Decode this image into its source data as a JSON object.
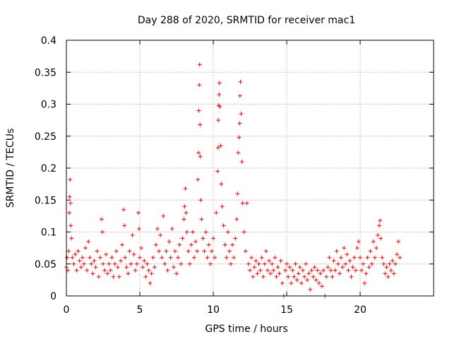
{
  "chart_data": {
    "type": "scatter",
    "title": "Day 288 of 2020, SRMTID for receiver mac1",
    "xlabel": "GPS time / hours",
    "ylabel": "SRMTID / TECUs",
    "xlim": [
      0,
      25
    ],
    "ylim": [
      0,
      0.4
    ],
    "xticks": [
      0,
      5,
      10,
      15,
      20
    ],
    "xtick_labels": [
      "0",
      "5",
      "10",
      "15",
      "20"
    ],
    "yticks": [
      0,
      0.05,
      0.1,
      0.15,
      0.2,
      0.25,
      0.3,
      0.35,
      0.4
    ],
    "ytick_labels": [
      "0",
      "0.05",
      "0.1",
      "0.15",
      "0.2",
      "0.25",
      "0.3",
      "0.35",
      "0.4"
    ],
    "grid": true,
    "marker": "plus",
    "color": "#ff0000",
    "series": [
      {
        "name": "SRMTID",
        "points": [
          [
            0.0,
            0.045
          ],
          [
            0.05,
            0.06
          ],
          [
            0.1,
            0.04
          ],
          [
            0.15,
            0.07
          ],
          [
            0.2,
            0.13
          ],
          [
            0.22,
            0.155
          ],
          [
            0.25,
            0.182
          ],
          [
            0.28,
            0.145
          ],
          [
            0.3,
            0.11
          ],
          [
            0.35,
            0.09
          ],
          [
            0.4,
            0.06
          ],
          [
            0.5,
            0.05
          ],
          [
            0.6,
            0.065
          ],
          [
            0.7,
            0.04
          ],
          [
            0.8,
            0.07
          ],
          [
            0.9,
            0.055
          ],
          [
            1.0,
            0.045
          ],
          [
            1.1,
            0.06
          ],
          [
            1.2,
            0.05
          ],
          [
            1.3,
            0.075
          ],
          [
            1.4,
            0.04
          ],
          [
            1.5,
            0.085
          ],
          [
            1.6,
            0.06
          ],
          [
            1.7,
            0.05
          ],
          [
            1.8,
            0.035
          ],
          [
            1.9,
            0.055
          ],
          [
            2.0,
            0.045
          ],
          [
            2.1,
            0.07
          ],
          [
            2.2,
            0.03
          ],
          [
            2.3,
            0.06
          ],
          [
            2.4,
            0.12
          ],
          [
            2.45,
            0.1
          ],
          [
            2.5,
            0.05
          ],
          [
            2.6,
            0.04
          ],
          [
            2.7,
            0.065
          ],
          [
            2.8,
            0.035
          ],
          [
            2.9,
            0.05
          ],
          [
            3.0,
            0.04
          ],
          [
            3.1,
            0.06
          ],
          [
            3.2,
            0.03
          ],
          [
            3.3,
            0.05
          ],
          [
            3.4,
            0.07
          ],
          [
            3.5,
            0.045
          ],
          [
            3.6,
            0.03
          ],
          [
            3.7,
            0.055
          ],
          [
            3.8,
            0.08
          ],
          [
            3.9,
            0.135
          ],
          [
            3.95,
            0.11
          ],
          [
            4.0,
            0.06
          ],
          [
            4.1,
            0.045
          ],
          [
            4.2,
            0.035
          ],
          [
            4.3,
            0.07
          ],
          [
            4.4,
            0.05
          ],
          [
            4.5,
            0.095
          ],
          [
            4.6,
            0.065
          ],
          [
            4.7,
            0.04
          ],
          [
            4.8,
            0.05
          ],
          [
            4.9,
            0.13
          ],
          [
            4.95,
            0.105
          ],
          [
            5.0,
            0.06
          ],
          [
            5.1,
            0.075
          ],
          [
            5.2,
            0.045
          ],
          [
            5.3,
            0.055
          ],
          [
            5.4,
            0.03
          ],
          [
            5.5,
            0.05
          ],
          [
            5.6,
            0.04
          ],
          [
            5.7,
            0.02
          ],
          [
            5.8,
            0.035
          ],
          [
            5.9,
            0.06
          ],
          [
            6.0,
            0.045
          ],
          [
            6.1,
            0.08
          ],
          [
            6.2,
            0.105
          ],
          [
            6.3,
            0.07
          ],
          [
            6.4,
            0.095
          ],
          [
            6.5,
            0.06
          ],
          [
            6.6,
            0.125
          ],
          [
            6.7,
            0.05
          ],
          [
            6.8,
            0.07
          ],
          [
            6.9,
            0.04
          ],
          [
            7.0,
            0.085
          ],
          [
            7.1,
            0.06
          ],
          [
            7.2,
            0.105
          ],
          [
            7.3,
            0.045
          ],
          [
            7.4,
            0.07
          ],
          [
            7.5,
            0.035
          ],
          [
            7.6,
            0.06
          ],
          [
            7.7,
            0.08
          ],
          [
            7.8,
            0.05
          ],
          [
            7.9,
            0.09
          ],
          [
            8.0,
            0.12
          ],
          [
            8.05,
            0.14
          ],
          [
            8.1,
            0.168
          ],
          [
            8.15,
            0.13
          ],
          [
            8.2,
            0.1
          ],
          [
            8.3,
            0.07
          ],
          [
            8.4,
            0.05
          ],
          [
            8.5,
            0.08
          ],
          [
            8.6,
            0.1
          ],
          [
            8.7,
            0.06
          ],
          [
            8.8,
            0.085
          ],
          [
            8.9,
            0.07
          ],
          [
            8.95,
            0.182
          ],
          [
            9.0,
            0.224
          ],
          [
            9.02,
            0.29
          ],
          [
            9.05,
            0.33
          ],
          [
            9.07,
            0.362
          ],
          [
            9.1,
            0.268
          ],
          [
            9.12,
            0.218
          ],
          [
            9.15,
            0.15
          ],
          [
            9.2,
            0.12
          ],
          [
            9.3,
            0.09
          ],
          [
            9.4,
            0.07
          ],
          [
            9.5,
            0.1
          ],
          [
            9.6,
            0.06
          ],
          [
            9.7,
            0.08
          ],
          [
            9.8,
            0.05
          ],
          [
            9.9,
            0.07
          ],
          [
            10.0,
            0.09
          ],
          [
            10.1,
            0.06
          ],
          [
            10.2,
            0.13
          ],
          [
            10.3,
            0.195
          ],
          [
            10.32,
            0.232
          ],
          [
            10.35,
            0.275
          ],
          [
            10.37,
            0.298
          ],
          [
            10.4,
            0.315
          ],
          [
            10.42,
            0.333
          ],
          [
            10.45,
            0.296
          ],
          [
            10.5,
            0.235
          ],
          [
            10.55,
            0.175
          ],
          [
            10.6,
            0.14
          ],
          [
            10.7,
            0.11
          ],
          [
            10.8,
            0.08
          ],
          [
            10.9,
            0.06
          ],
          [
            11.0,
            0.1
          ],
          [
            11.1,
            0.07
          ],
          [
            11.2,
            0.05
          ],
          [
            11.3,
            0.08
          ],
          [
            11.4,
            0.06
          ],
          [
            11.5,
            0.09
          ],
          [
            11.6,
            0.12
          ],
          [
            11.65,
            0.16
          ],
          [
            11.7,
            0.224
          ],
          [
            11.75,
            0.248
          ],
          [
            11.8,
            0.27
          ],
          [
            11.82,
            0.313
          ],
          [
            11.85,
            0.335
          ],
          [
            11.9,
            0.285
          ],
          [
            11.95,
            0.21
          ],
          [
            12.0,
            0.145
          ],
          [
            12.1,
            0.1
          ],
          [
            12.2,
            0.07
          ],
          [
            12.3,
            0.145
          ],
          [
            12.4,
            0.05
          ],
          [
            12.5,
            0.04
          ],
          [
            12.6,
            0.06
          ],
          [
            12.7,
            0.03
          ],
          [
            12.8,
            0.045
          ],
          [
            12.9,
            0.055
          ],
          [
            13.0,
            0.035
          ],
          [
            13.1,
            0.05
          ],
          [
            13.2,
            0.04
          ],
          [
            13.3,
            0.06
          ],
          [
            13.4,
            0.03
          ],
          [
            13.5,
            0.05
          ],
          [
            13.6,
            0.07
          ],
          [
            13.7,
            0.04
          ],
          [
            13.8,
            0.055
          ],
          [
            13.9,
            0.035
          ],
          [
            14.0,
            0.05
          ],
          [
            14.1,
            0.04
          ],
          [
            14.2,
            0.06
          ],
          [
            14.3,
            0.03
          ],
          [
            14.4,
            0.045
          ],
          [
            14.5,
            0.035
          ],
          [
            14.6,
            0.055
          ],
          [
            14.7,
            0.02
          ],
          [
            14.8,
            0.0
          ],
          [
            14.9,
            0.04
          ],
          [
            15.0,
            0.05
          ],
          [
            15.1,
            0.03
          ],
          [
            15.2,
            0.045
          ],
          [
            15.3,
            0.02
          ],
          [
            15.4,
            0.04
          ],
          [
            15.5,
            0.03
          ],
          [
            15.6,
            0.05
          ],
          [
            15.7,
            0.025
          ],
          [
            15.8,
            0.035
          ],
          [
            15.9,
            0.045
          ],
          [
            16.0,
            0.02
          ],
          [
            16.1,
            0.04
          ],
          [
            16.2,
            0.03
          ],
          [
            16.3,
            0.05
          ],
          [
            16.4,
            0.025
          ],
          [
            16.5,
            0.035
          ],
          [
            16.6,
            0.01
          ],
          [
            16.7,
            0.04
          ],
          [
            16.8,
            0.03
          ],
          [
            16.9,
            0.045
          ],
          [
            17.0,
            0.025
          ],
          [
            17.1,
            0.04
          ],
          [
            17.2,
            0.02
          ],
          [
            17.3,
            0.035
          ],
          [
            17.4,
            0.015
          ],
          [
            17.5,
            0.04
          ],
          [
            17.6,
            0.0
          ],
          [
            17.7,
            0.03
          ],
          [
            17.8,
            0.045
          ],
          [
            17.9,
            0.06
          ],
          [
            18.0,
            0.04
          ],
          [
            18.1,
            0.03
          ],
          [
            18.2,
            0.055
          ],
          [
            18.3,
            0.04
          ],
          [
            18.4,
            0.07
          ],
          [
            18.5,
            0.05
          ],
          [
            18.6,
            0.035
          ],
          [
            18.7,
            0.06
          ],
          [
            18.8,
            0.045
          ],
          [
            18.9,
            0.075
          ],
          [
            19.0,
            0.05
          ],
          [
            19.1,
            0.065
          ],
          [
            19.2,
            0.04
          ],
          [
            19.3,
            0.055
          ],
          [
            19.4,
            0.03
          ],
          [
            19.5,
            0.045
          ],
          [
            19.6,
            0.06
          ],
          [
            19.7,
            0.04
          ],
          [
            19.8,
            0.075
          ],
          [
            19.9,
            0.085
          ],
          [
            20.0,
            0.06
          ],
          [
            20.1,
            0.04
          ],
          [
            20.2,
            0.05
          ],
          [
            20.3,
            0.02
          ],
          [
            20.4,
            0.035
          ],
          [
            20.5,
            0.06
          ],
          [
            20.6,
            0.045
          ],
          [
            20.7,
            0.07
          ],
          [
            20.8,
            0.05
          ],
          [
            20.9,
            0.085
          ],
          [
            21.0,
            0.06
          ],
          [
            21.1,
            0.075
          ],
          [
            21.2,
            0.095
          ],
          [
            21.3,
            0.11
          ],
          [
            21.35,
            0.118
          ],
          [
            21.4,
            0.09
          ],
          [
            21.5,
            0.06
          ],
          [
            21.6,
            0.05
          ],
          [
            21.7,
            0.035
          ],
          [
            21.8,
            0.045
          ],
          [
            21.9,
            0.03
          ],
          [
            22.0,
            0.05
          ],
          [
            22.1,
            0.04
          ],
          [
            22.2,
            0.055
          ],
          [
            22.3,
            0.035
          ],
          [
            22.4,
            0.05
          ],
          [
            22.5,
            0.065
          ],
          [
            22.6,
            0.085
          ],
          [
            22.7,
            0.06
          ]
        ]
      }
    ]
  }
}
